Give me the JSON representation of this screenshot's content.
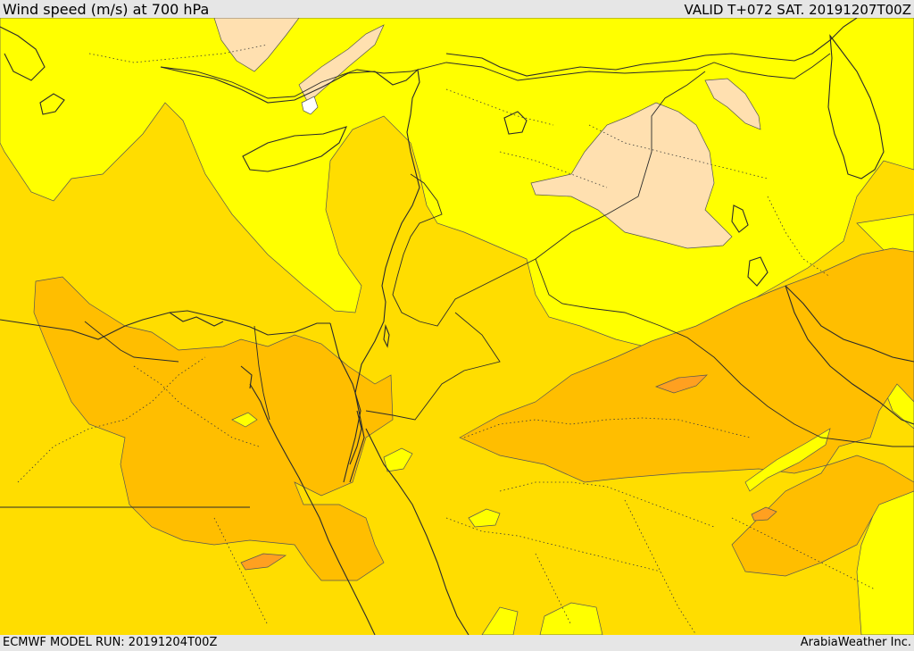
{
  "header": {
    "title": "Wind speed (m/s) at 700 hPa",
    "valid": "VALID T+072 SAT. 20191207T00Z"
  },
  "footer": {
    "model_run": "ECMWF MODEL RUN: 20191204T00Z",
    "credit": "ArabiaWeather Inc."
  },
  "map": {
    "field": "wind speed",
    "level": "700 hPa",
    "colors": {
      "very_light": "#ffe0b0",
      "light": "#ffff00",
      "moderate": "#ffdd00",
      "strong": "#ffbe00",
      "stronger": "#ffa020",
      "calm": "#ffffff",
      "lines": "#2a2a2a"
    }
  }
}
